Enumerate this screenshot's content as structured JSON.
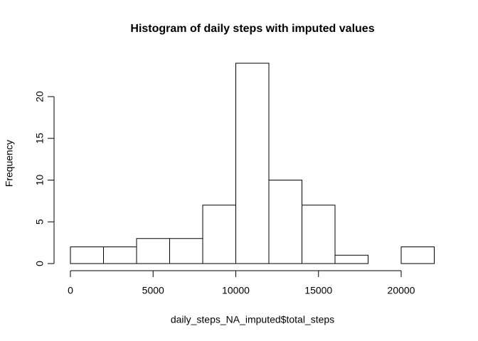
{
  "chart_data": {
    "type": "histogram",
    "title": "Histogram of daily steps with imputed values",
    "x_label": "daily_steps_NA_imputed$total_steps",
    "y_label": "Frequency",
    "bins": [
      0,
      2000,
      4000,
      6000,
      8000,
      10000,
      12000,
      14000,
      16000,
      18000,
      20000,
      22000
    ],
    "values": [
      2,
      2,
      3,
      3,
      7,
      24,
      10,
      7,
      1,
      0,
      2
    ],
    "color": "#ffffff",
    "edge_color": "#000000",
    "xlim": [
      0,
      22000
    ],
    "xticks": [
      0,
      5000,
      10000,
      15000,
      20000
    ],
    "ylim": [
      0,
      24
    ],
    "yticks": [
      0,
      5,
      10,
      15,
      20
    ]
  }
}
